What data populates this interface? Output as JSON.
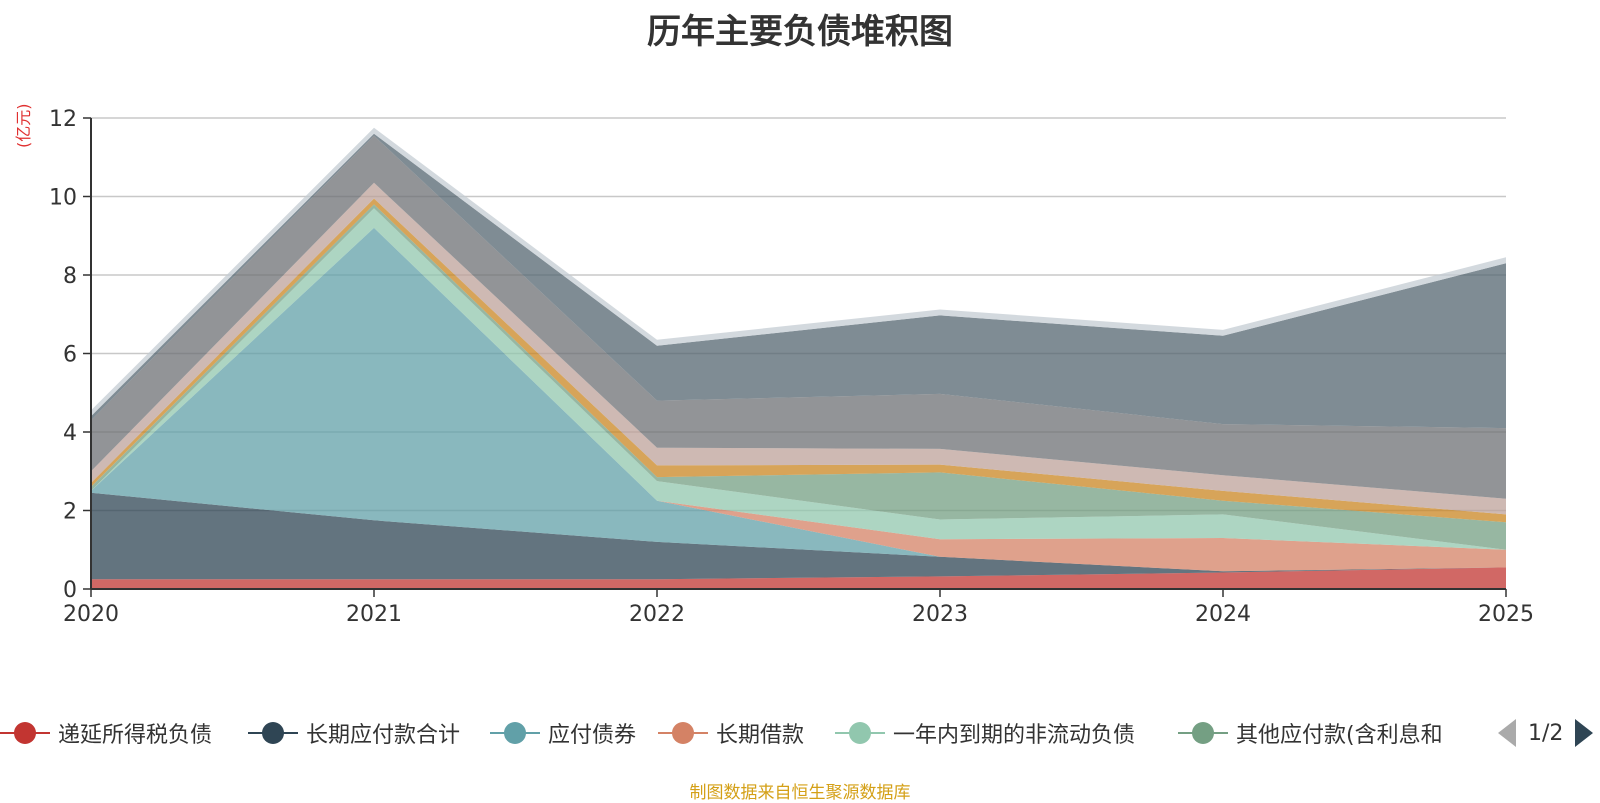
{
  "colors": {
    "title": "#333333",
    "unit": "#e03030",
    "source": "#d4a017",
    "axis": "#333333",
    "grid": "#c8c8c8"
  },
  "chart_data": {
    "type": "area",
    "stacked": true,
    "title": "历年主要负债堆积图",
    "unit_label": "(亿元)",
    "source_note": "制图数据来自恒生聚源数据库",
    "x": [
      "2020",
      "2021",
      "2022",
      "2023",
      "2024",
      "2025"
    ],
    "y_ticks": [
      "0",
      "2",
      "4",
      "6",
      "8",
      "10",
      "12"
    ],
    "ylim": [
      0,
      12
    ],
    "grid": true,
    "legend_position": "bottom",
    "series": [
      {
        "name": "递延所得税负债",
        "color": "#c23531",
        "values": [
          0.25,
          0.25,
          0.25,
          0.32,
          0.42,
          0.55
        ]
      },
      {
        "name": "长期应付款合计",
        "color": "#2f4554",
        "values": [
          2.2,
          1.5,
          0.95,
          0.5,
          0.03,
          0.0
        ]
      },
      {
        "name": "应付债券",
        "color": "#61a0a8",
        "values": [
          0.05,
          7.45,
          1.05,
          0.0,
          0.0,
          0.0
        ]
      },
      {
        "name": "长期借款",
        "color": "#d48265",
        "values": [
          0.0,
          0.0,
          0.0,
          0.45,
          0.85,
          0.45
        ]
      },
      {
        "name": "一年内到期的非流动负债",
        "color": "#91c7ae",
        "values": [
          0.0,
          0.5,
          0.5,
          0.5,
          0.6,
          0.0
        ]
      },
      {
        "name": "其他应付款(含利息和",
        "color": "#749f83",
        "values": [
          0.1,
          0.1,
          0.1,
          1.2,
          0.35,
          0.7
        ]
      },
      {
        "name": "",
        "color": "#ca8622",
        "values": [
          0.1,
          0.15,
          0.3,
          0.2,
          0.25,
          0.2
        ]
      },
      {
        "name": "",
        "color": "#bda29a",
        "values": [
          0.3,
          0.4,
          0.45,
          0.4,
          0.4,
          0.4
        ]
      },
      {
        "name": "",
        "color": "#6e7074",
        "values": [
          1.3,
          1.2,
          1.2,
          1.4,
          1.3,
          1.8
        ]
      },
      {
        "name": "",
        "color": "#546570",
        "values": [
          0.1,
          0.05,
          1.4,
          2.0,
          2.25,
          4.2
        ]
      },
      {
        "name": "",
        "color": "#c4ccd3",
        "values": [
          0.15,
          0.15,
          0.15,
          0.15,
          0.15,
          0.15
        ]
      }
    ]
  },
  "legend": {
    "visible_count": 6,
    "page": "1/2"
  }
}
